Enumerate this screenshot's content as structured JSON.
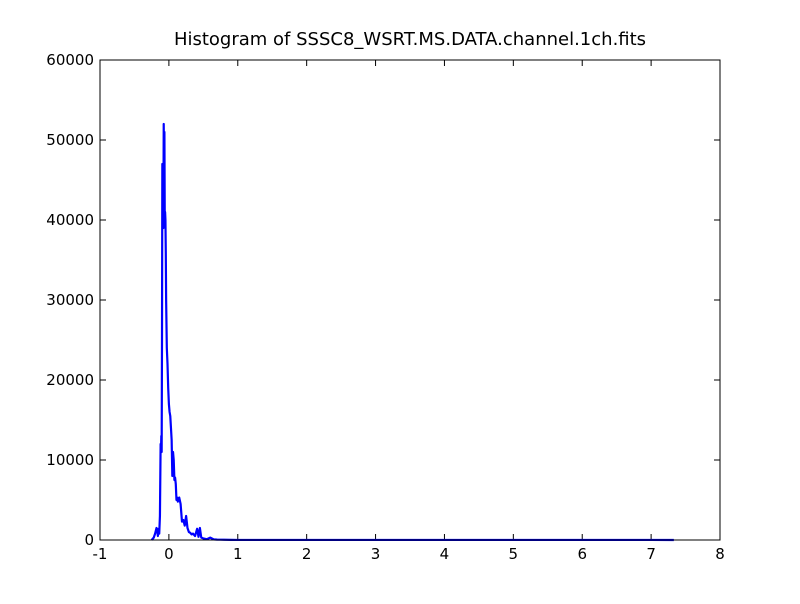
{
  "chart_data": {
    "type": "line",
    "title": "Histogram of SSSC8_WSRT.MS.DATA.channel.1ch.fits",
    "xlabel": "",
    "ylabel": "",
    "xlim": [
      -1,
      8
    ],
    "ylim": [
      0,
      60000
    ],
    "x_ticks": [
      "-1",
      "0",
      "1",
      "2",
      "3",
      "4",
      "5",
      "6",
      "7",
      "8"
    ],
    "y_ticks": [
      "0",
      "10000",
      "20000",
      "30000",
      "40000",
      "50000",
      "60000"
    ],
    "grid": false,
    "legend": "none",
    "series": [
      {
        "color": "#0000ff",
        "x": [
          -0.25,
          -0.22,
          -0.2,
          -0.18,
          -0.17,
          -0.16,
          -0.15,
          -0.14,
          -0.13,
          -0.12,
          -0.115,
          -0.11,
          -0.105,
          -0.1,
          -0.095,
          -0.09,
          -0.085,
          -0.08,
          -0.075,
          -0.07,
          -0.065,
          -0.06,
          -0.055,
          -0.05,
          -0.045,
          -0.04,
          -0.03,
          -0.02,
          -0.01,
          0.0,
          0.01,
          0.02,
          0.03,
          0.04,
          0.05,
          0.06,
          0.07,
          0.08,
          0.09,
          0.1,
          0.11,
          0.12,
          0.13,
          0.14,
          0.15,
          0.17,
          0.19,
          0.21,
          0.23,
          0.25,
          0.27,
          0.29,
          0.31,
          0.33,
          0.35,
          0.38,
          0.41,
          0.43,
          0.45,
          0.47,
          0.5,
          0.55,
          0.6,
          0.65,
          0.7,
          0.75,
          0.8,
          0.9,
          1.0,
          1.5,
          2.0,
          3.0,
          4.0,
          5.0,
          6.0,
          7.0,
          7.33
        ],
        "y": [
          0,
          300,
          800,
          1500,
          1200,
          500,
          1400,
          800,
          3000,
          12000,
          11000,
          13000,
          11000,
          25000,
          47000,
          45000,
          47000,
          39000,
          52000,
          46000,
          51000,
          40000,
          41000,
          40000,
          36000,
          30000,
          24000,
          22000,
          19000,
          17000,
          16000,
          15500,
          14000,
          12500,
          8000,
          11000,
          10000,
          7500,
          7800,
          7000,
          5000,
          5300,
          4800,
          5200,
          5300,
          4500,
          2300,
          2500,
          1800,
          3000,
          1500,
          1000,
          900,
          700,
          800,
          500,
          1400,
          400,
          1500,
          300,
          200,
          100,
          300,
          80,
          50,
          40,
          30,
          20,
          10,
          5,
          5,
          5,
          5,
          5,
          5,
          5,
          0
        ]
      }
    ]
  }
}
